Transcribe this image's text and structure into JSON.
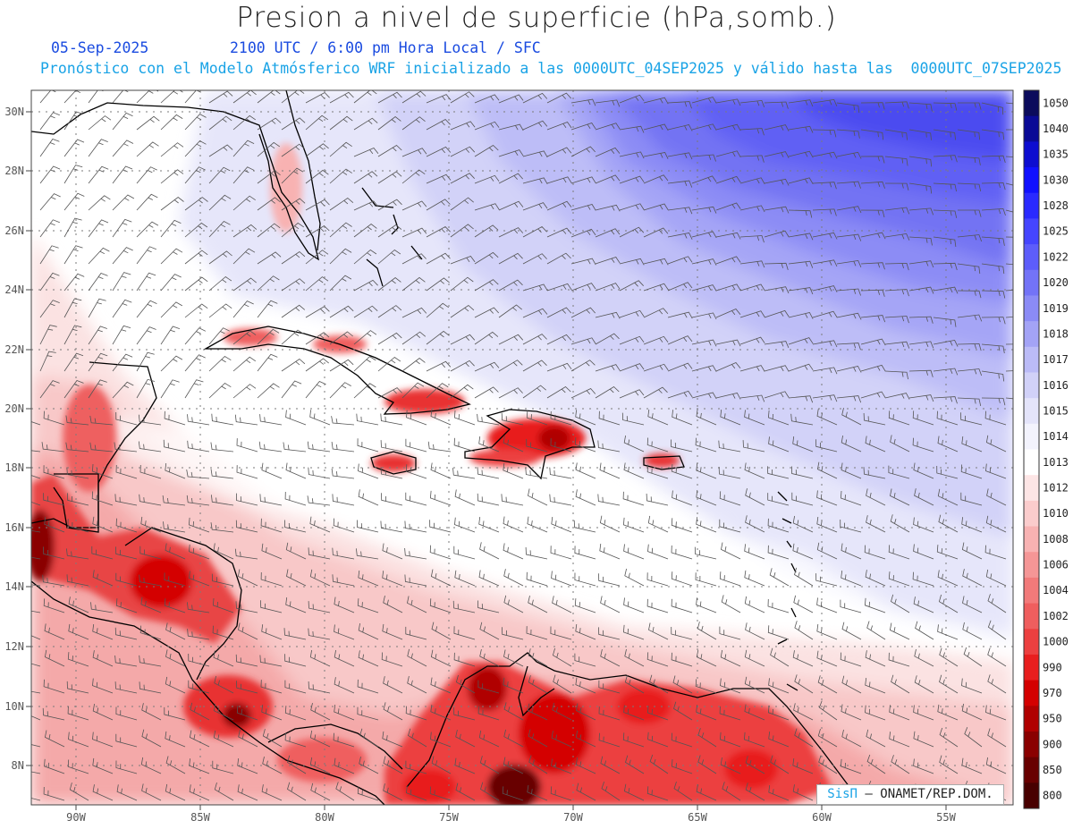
{
  "title": "Presion a nivel de superficie (hPa,somb.)",
  "date": "05-Sep-2025",
  "valid_time": "2100 UTC / 6:00 pm Hora Local / SFC",
  "forecast_note": "Pronóstico con el Modelo Atmósferico WRF inicializado a las 0000UTC_04SEP2025 y válido hasta las  0000UTC_07SEP2025",
  "credit": {
    "brand": "SisΠ",
    "text": "– ONAMET/REP.DOM."
  },
  "lon_labels": [
    "90W",
    "85W",
    "80W",
    "75W",
    "70W",
    "65W",
    "60W",
    "55W"
  ],
  "lat_labels": [
    "30N",
    "28N",
    "26N",
    "24N",
    "22N",
    "20N",
    "18N",
    "16N",
    "14N",
    "12N",
    "10N",
    "8N"
  ],
  "colorbar": {
    "levels": [
      "1050",
      "1040",
      "1035",
      "1030",
      "1028",
      "1025",
      "1022",
      "1020",
      "1019",
      "1018",
      "1017",
      "1016",
      "1015",
      "1014",
      "1013",
      "1012",
      "1010",
      "1008",
      "1006",
      "1004",
      "1002",
      "1000",
      "990",
      "970",
      "950",
      "900",
      "850",
      "800"
    ],
    "colors": [
      "#0b0b5c",
      "#0a0a96",
      "#0d0dd0",
      "#1010ff",
      "#2a2aff",
      "#4545ff",
      "#5d5dfb",
      "#7373f7",
      "#8b8bf6",
      "#a3a3f6",
      "#bbbbf7",
      "#d1d1f8",
      "#e4e4fa",
      "#f3f3fd",
      "#ffffff",
      "#fde5e5",
      "#fbcccc",
      "#f8b2b2",
      "#f59696",
      "#f27a7a",
      "#ef5e5e",
      "#ec4040",
      "#e81e1e",
      "#d40000",
      "#b00000",
      "#8a0000",
      "#680000",
      "#480000"
    ]
  },
  "map_icons": [
    "coastline-icon",
    "wind-barb-icon"
  ]
}
